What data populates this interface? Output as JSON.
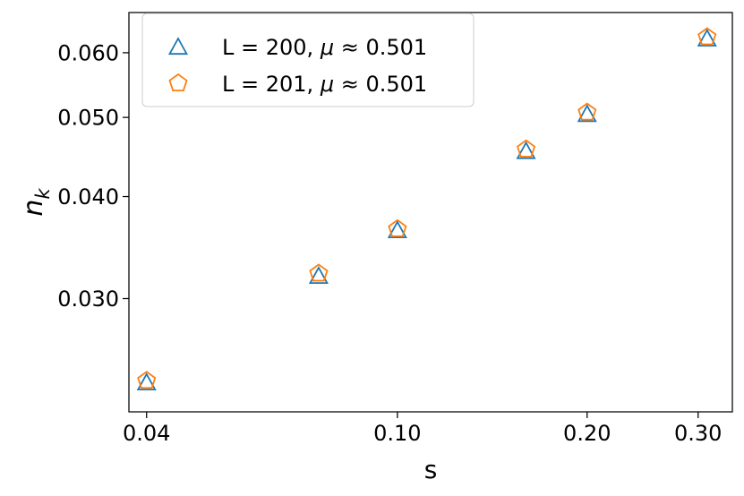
{
  "chart_data": {
    "type": "scatter",
    "xlabel": "s",
    "ylabel": "n_k",
    "x_scale": "log",
    "y_scale": "log",
    "xlim": [
      0.0375,
      0.34
    ],
    "ylim": [
      0.0218,
      0.0672
    ],
    "x_ticks": [
      {
        "value": 0.04,
        "label": "0.04"
      },
      {
        "value": 0.1,
        "label": "0.10"
      },
      {
        "value": 0.2,
        "label": "0.20"
      },
      {
        "value": 0.3,
        "label": "0.30"
      }
    ],
    "y_ticks": [
      {
        "value": 0.03,
        "label": "0.030"
      },
      {
        "value": 0.04,
        "label": "0.040"
      },
      {
        "value": 0.05,
        "label": "0.050"
      },
      {
        "value": 0.06,
        "label": "0.060"
      }
    ],
    "grid": false,
    "legend_position": "upper-left",
    "series": [
      {
        "name": "L = 200, μ ≈ 0.501",
        "legend_main": "L = 200, ",
        "legend_mu": "μ",
        "legend_rest": " ≈  0.501",
        "marker": "triangle",
        "color": "#1f77b4",
        "x": [
          0.04,
          0.075,
          0.1,
          0.16,
          0.2,
          0.31
        ],
        "y": [
          0.0237,
          0.032,
          0.0364,
          0.0455,
          0.0505,
          0.0625
        ]
      },
      {
        "name": "L = 201, μ ≈ 0.501",
        "legend_main": "L = 201, ",
        "legend_mu": "μ",
        "legend_rest": " ≈  0.501",
        "marker": "pentagon",
        "color": "#ff7f0e",
        "x": [
          0.04,
          0.075,
          0.1,
          0.16,
          0.2,
          0.31
        ],
        "y": [
          0.0238,
          0.0322,
          0.0365,
          0.0457,
          0.0507,
          0.0627
        ]
      }
    ]
  }
}
